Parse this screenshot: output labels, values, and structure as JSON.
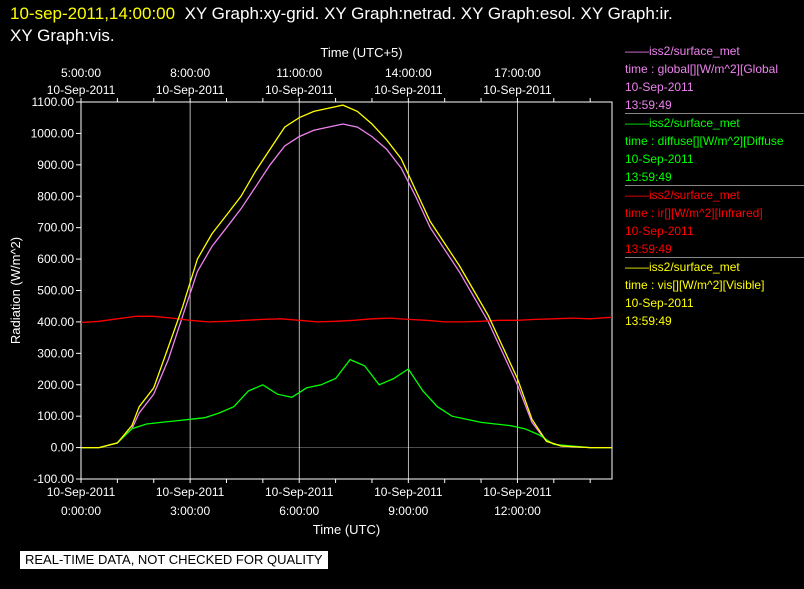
{
  "header": {
    "timestamp": "10-sep-2011,14:00:00",
    "graphs_line1": "XY Graph:xy-grid.  XY Graph:netrad.  XY Graph:esol.  XY Graph:ir.",
    "graphs_line2": "XY Graph:vis."
  },
  "legend": [
    {
      "source": "——iss2/surface_met",
      "variable": "time : global[][W/m^2][Global",
      "date": "10-Sep-2011",
      "time": "13:59:49",
      "color": "#ee82ee"
    },
    {
      "source": "——iss2/surface_met",
      "variable": "time : diffuse[][W/m^2][Diffuse",
      "date": "10-Sep-2011",
      "time": "13:59:49",
      "color": "#00ff00"
    },
    {
      "source": "——iss2/surface_met",
      "variable": "time : ir[][W/m^2][Infrared]",
      "date": "10-Sep-2011",
      "time": "13:59:49",
      "color": "#ff0000"
    },
    {
      "source": "——iss2/surface_met",
      "variable": "time : vis[][W/m^2][Visible]",
      "date": "10-Sep-2011",
      "time": "13:59:49",
      "color": "#ffff00"
    }
  ],
  "qc_notice": "REAL-TIME DATA, NOT CHECKED FOR QUALITY",
  "chart_data": {
    "type": "line",
    "title": "",
    "xlabel": "Time (UTC)",
    "x2label": "Time (UTC+5)",
    "ylabel": "Radiation (W/m^2)",
    "xlim_hours_utc": [
      0,
      14.6
    ],
    "ylim": [
      -100,
      1100
    ],
    "grid": true,
    "y_ticks": [
      "1100.00",
      "1000.00",
      "900.00",
      "800.00",
      "700.00",
      "600.00",
      "500.00",
      "400.00",
      "300.00",
      "200.00",
      "100.00",
      "0.00",
      "-100.00"
    ],
    "x_ticks": [
      {
        "date": "10-Sep-2011",
        "time": "0:00:00",
        "hour": 0
      },
      {
        "date": "10-Sep-2011",
        "time": "3:00:00",
        "hour": 3
      },
      {
        "date": "10-Sep-2011",
        "time": "6:00:00",
        "hour": 6
      },
      {
        "date": "10-Sep-2011",
        "time": "9:00:00",
        "hour": 9
      },
      {
        "date": "10-Sep-2011",
        "time": "12:00:00",
        "hour": 12
      }
    ],
    "x2_ticks": [
      {
        "time": "5:00:00",
        "date": "10-Sep-2011",
        "hour": 0
      },
      {
        "time": "8:00:00",
        "date": "10-Sep-2011",
        "hour": 3
      },
      {
        "time": "11:00:00",
        "date": "10-Sep-2011",
        "hour": 6
      },
      {
        "time": "14:00:00",
        "date": "10-Sep-2011",
        "hour": 9
      },
      {
        "time": "17:00:00",
        "date": "10-Sep-2011",
        "hour": 12
      }
    ],
    "series": [
      {
        "name": "global",
        "color": "#ee82ee",
        "x": [
          0,
          0.5,
          1.0,
          1.4,
          1.6,
          2.0,
          2.4,
          2.8,
          3.2,
          3.6,
          4.0,
          4.4,
          4.8,
          5.2,
          5.6,
          6.0,
          6.4,
          6.8,
          7.2,
          7.6,
          8.0,
          8.4,
          8.8,
          9.2,
          9.6,
          10.0,
          10.4,
          10.8,
          11.2,
          11.6,
          12.0,
          12.4,
          12.8,
          13.2,
          14.0,
          14.6
        ],
        "y": [
          0,
          0,
          15,
          60,
          110,
          170,
          280,
          420,
          560,
          640,
          700,
          760,
          830,
          900,
          960,
          990,
          1010,
          1020,
          1030,
          1020,
          990,
          950,
          890,
          800,
          700,
          630,
          560,
          480,
          400,
          300,
          200,
          80,
          20,
          5,
          0,
          0
        ]
      },
      {
        "name": "diffuse",
        "color": "#00ff00",
        "x": [
          0,
          0.5,
          1.0,
          1.4,
          1.8,
          2.2,
          2.6,
          3.0,
          3.4,
          3.8,
          4.2,
          4.6,
          5.0,
          5.4,
          5.8,
          6.2,
          6.6,
          7.0,
          7.4,
          7.8,
          8.2,
          8.6,
          9.0,
          9.4,
          9.8,
          10.2,
          10.6,
          11.0,
          11.4,
          11.8,
          12.2,
          12.6,
          13.0,
          14.0,
          14.6
        ],
        "y": [
          0,
          0,
          15,
          60,
          75,
          80,
          85,
          90,
          95,
          110,
          130,
          180,
          200,
          170,
          160,
          190,
          200,
          220,
          280,
          260,
          200,
          220,
          250,
          180,
          130,
          100,
          90,
          80,
          75,
          70,
          60,
          40,
          10,
          0,
          0
        ]
      },
      {
        "name": "ir",
        "color": "#ff0000",
        "x": [
          0,
          0.5,
          1.0,
          1.5,
          2.0,
          2.5,
          3.0,
          3.5,
          4.0,
          4.5,
          5.0,
          5.5,
          6.0,
          6.5,
          7.0,
          7.5,
          8.0,
          8.5,
          9.0,
          9.5,
          10.0,
          10.5,
          11.0,
          11.5,
          12.0,
          12.5,
          13.0,
          13.5,
          14.0,
          14.6
        ],
        "y": [
          398,
          402,
          410,
          418,
          418,
          412,
          405,
          400,
          402,
          405,
          408,
          410,
          405,
          400,
          402,
          405,
          410,
          412,
          408,
          405,
          400,
          400,
          402,
          405,
          405,
          408,
          410,
          412,
          410,
          415
        ]
      },
      {
        "name": "vis",
        "color": "#ffff00",
        "x": [
          0,
          0.5,
          1.0,
          1.4,
          1.6,
          2.0,
          2.4,
          2.8,
          3.2,
          3.6,
          4.0,
          4.4,
          4.8,
          5.2,
          5.6,
          6.0,
          6.4,
          6.8,
          7.2,
          7.6,
          8.0,
          8.4,
          8.8,
          9.2,
          9.6,
          10.0,
          10.4,
          10.8,
          11.2,
          11.6,
          12.0,
          12.4,
          12.8,
          13.2,
          14.0,
          14.6
        ],
        "y": [
          0,
          0,
          15,
          70,
          130,
          190,
          320,
          450,
          600,
          680,
          740,
          800,
          880,
          950,
          1020,
          1050,
          1070,
          1080,
          1090,
          1070,
          1030,
          980,
          920,
          820,
          720,
          650,
          580,
          500,
          420,
          320,
          220,
          90,
          20,
          5,
          0,
          0
        ]
      }
    ]
  }
}
